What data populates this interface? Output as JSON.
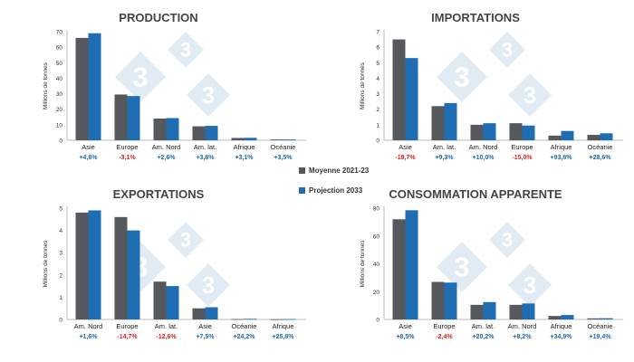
{
  "colors": {
    "moyenne": "#55595e",
    "projection": "#1f6db3",
    "positive": "#1f6db3",
    "negative": "#e02020",
    "watermark": "#c9dbe9"
  },
  "watermark": {
    "text": "3"
  },
  "legend": [
    {
      "label": "Moyenne 2021-23",
      "color": "#55595e"
    },
    {
      "label": "Projection 2033",
      "color": "#1f6db3"
    }
  ],
  "chart_data": [
    {
      "type": "bar",
      "title": "PRODUCTION",
      "ylabel": "Millions de tonnes",
      "ylim": [
        0,
        70
      ],
      "yticks": [
        0,
        10,
        20,
        30,
        40,
        50,
        60,
        70
      ],
      "categories": [
        "Asie",
        "Europe",
        "Am. Nord",
        "Am. lat.",
        "Afrique",
        "Océanie"
      ],
      "series": [
        {
          "name": "Moyenne 2021-23",
          "values": [
            66,
            29.5,
            14,
            9,
            1.5,
            0.5
          ]
        },
        {
          "name": "Projection 2033",
          "values": [
            69,
            28.5,
            14.3,
            9.3,
            1.6,
            0.5
          ]
        }
      ],
      "changes": [
        "+4,8%",
        "-3,1%",
        "+2,6%",
        "+3,8%",
        "+3,1%",
        "+3,5%"
      ]
    },
    {
      "type": "bar",
      "title": "IMPORTATIONS",
      "ylabel": "Millions de tonnes",
      "ylim": [
        0,
        7
      ],
      "yticks": [
        0,
        1,
        2,
        3,
        4,
        5,
        6,
        7
      ],
      "categories": [
        "Asie",
        "Am. lat.",
        "Am. Nord",
        "Europe",
        "Afrique",
        "Océanie"
      ],
      "series": [
        {
          "name": "Moyenne 2021-23",
          "values": [
            6.5,
            2.2,
            1.0,
            1.1,
            0.3,
            0.35
          ]
        },
        {
          "name": "Projection 2033",
          "values": [
            5.3,
            2.4,
            1.1,
            0.95,
            0.6,
            0.45
          ]
        }
      ],
      "changes": [
        "-18,7%",
        "+9,3%",
        "+10,0%",
        "-15,0%",
        "+93,8%",
        "+28,6%"
      ]
    },
    {
      "type": "bar",
      "title": "EXPORTATIONS",
      "ylabel": "Millions de tonnes",
      "ylim": [
        0,
        5
      ],
      "yticks": [
        0,
        1,
        2,
        3,
        4,
        5
      ],
      "categories": [
        "Am. Nord",
        "Europe",
        "Am. lat.",
        "Asie",
        "Océanie",
        "Afrique"
      ],
      "series": [
        {
          "name": "Moyenne 2021-23",
          "values": [
            4.8,
            4.6,
            1.7,
            0.5,
            0.02,
            0.01
          ]
        },
        {
          "name": "Projection 2033",
          "values": [
            4.9,
            4.0,
            1.5,
            0.55,
            0.03,
            0.02
          ]
        }
      ],
      "changes": [
        "+1,6%",
        "-14,7%",
        "-12,6%",
        "+7,5%",
        "+24,2%",
        "+25,8%"
      ]
    },
    {
      "type": "bar",
      "title": "CONSOMMATION APPARENTE",
      "ylabel": "Millions de tonnes",
      "ylim": [
        0,
        80
      ],
      "yticks": [
        0,
        20,
        40,
        60,
        80
      ],
      "categories": [
        "Asie",
        "Europe",
        "Am. lat.",
        "Am. Nord",
        "Afrique",
        "Océanie"
      ],
      "series": [
        {
          "name": "Moyenne 2021-23",
          "values": [
            72,
            27,
            10.5,
            10.5,
            2.5,
            0.8
          ]
        },
        {
          "name": "Projection 2033",
          "values": [
            78.5,
            26.5,
            12.5,
            11.5,
            3.2,
            0.9
          ]
        }
      ],
      "changes": [
        "+8,5%",
        "-2,4%",
        "+20,2%",
        "+8,2%",
        "+34,9%",
        "+19,4%"
      ]
    }
  ]
}
